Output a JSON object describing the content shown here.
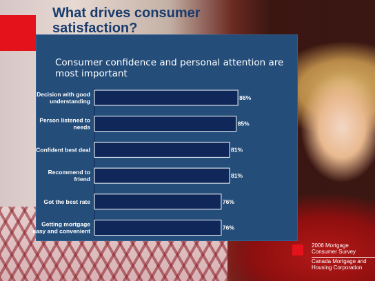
{
  "title": "What drives consumer satisfaction?",
  "subtitle": "Consumer confidence and personal attention are most important",
  "source": {
    "survey": "2006 Mortgage Consumer Survey",
    "org": "Canada Mortgage and Housing Corporation"
  },
  "colors": {
    "panel": "#244d7a",
    "bar": "#0f2759",
    "accent_red": "#e4121b",
    "title": "#1a3c6e"
  },
  "chart_data": {
    "type": "bar",
    "orientation": "horizontal",
    "categories": [
      [
        "Decision with good",
        "understanding"
      ],
      [
        "Person listened to",
        "needs"
      ],
      [
        "Confident best deal"
      ],
      [
        "Recommend to",
        "friend"
      ],
      [
        "Got the best rate"
      ],
      [
        "Getting mortgage",
        "easy and convenient"
      ]
    ],
    "values": [
      86,
      85,
      81,
      81,
      76,
      76
    ],
    "value_labels": [
      "86%",
      "85%",
      "81%",
      "81%",
      "76%",
      "76%"
    ],
    "xlim": [
      0,
      100
    ],
    "grid": false,
    "legend": "none"
  }
}
